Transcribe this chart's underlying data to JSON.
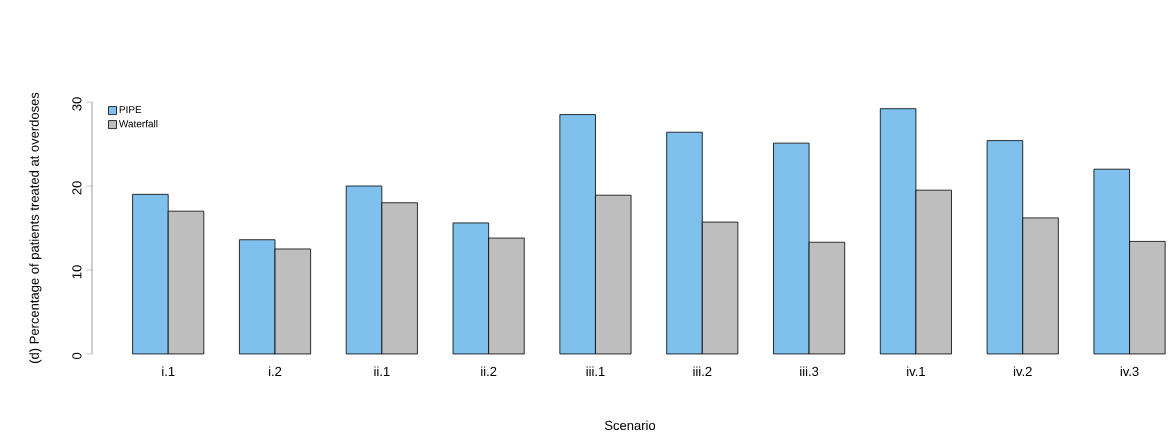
{
  "chart_data": {
    "type": "bar",
    "xlabel": "Scenario",
    "ylabel": "(d) Percentage of patients treated at overdoses",
    "categories": [
      "i.1",
      "i.2",
      "ii.1",
      "ii.2",
      "iii.1",
      "iii.2",
      "iii.3",
      "iv.1",
      "iv.2",
      "iv.3"
    ],
    "series": [
      {
        "name": "PIPE",
        "color": "#7fc0ec",
        "values": [
          19.0,
          13.6,
          20.0,
          15.6,
          28.5,
          26.4,
          25.1,
          29.2,
          25.4,
          22.0
        ]
      },
      {
        "name": "Waterfall",
        "color": "#bebebe",
        "values": [
          17.0,
          12.5,
          18.0,
          13.8,
          18.9,
          15.7,
          13.3,
          19.5,
          16.2,
          13.4
        ]
      }
    ],
    "ylim": [
      0,
      30
    ],
    "yticks": [
      0,
      10,
      20,
      30
    ],
    "legend": "top left"
  }
}
